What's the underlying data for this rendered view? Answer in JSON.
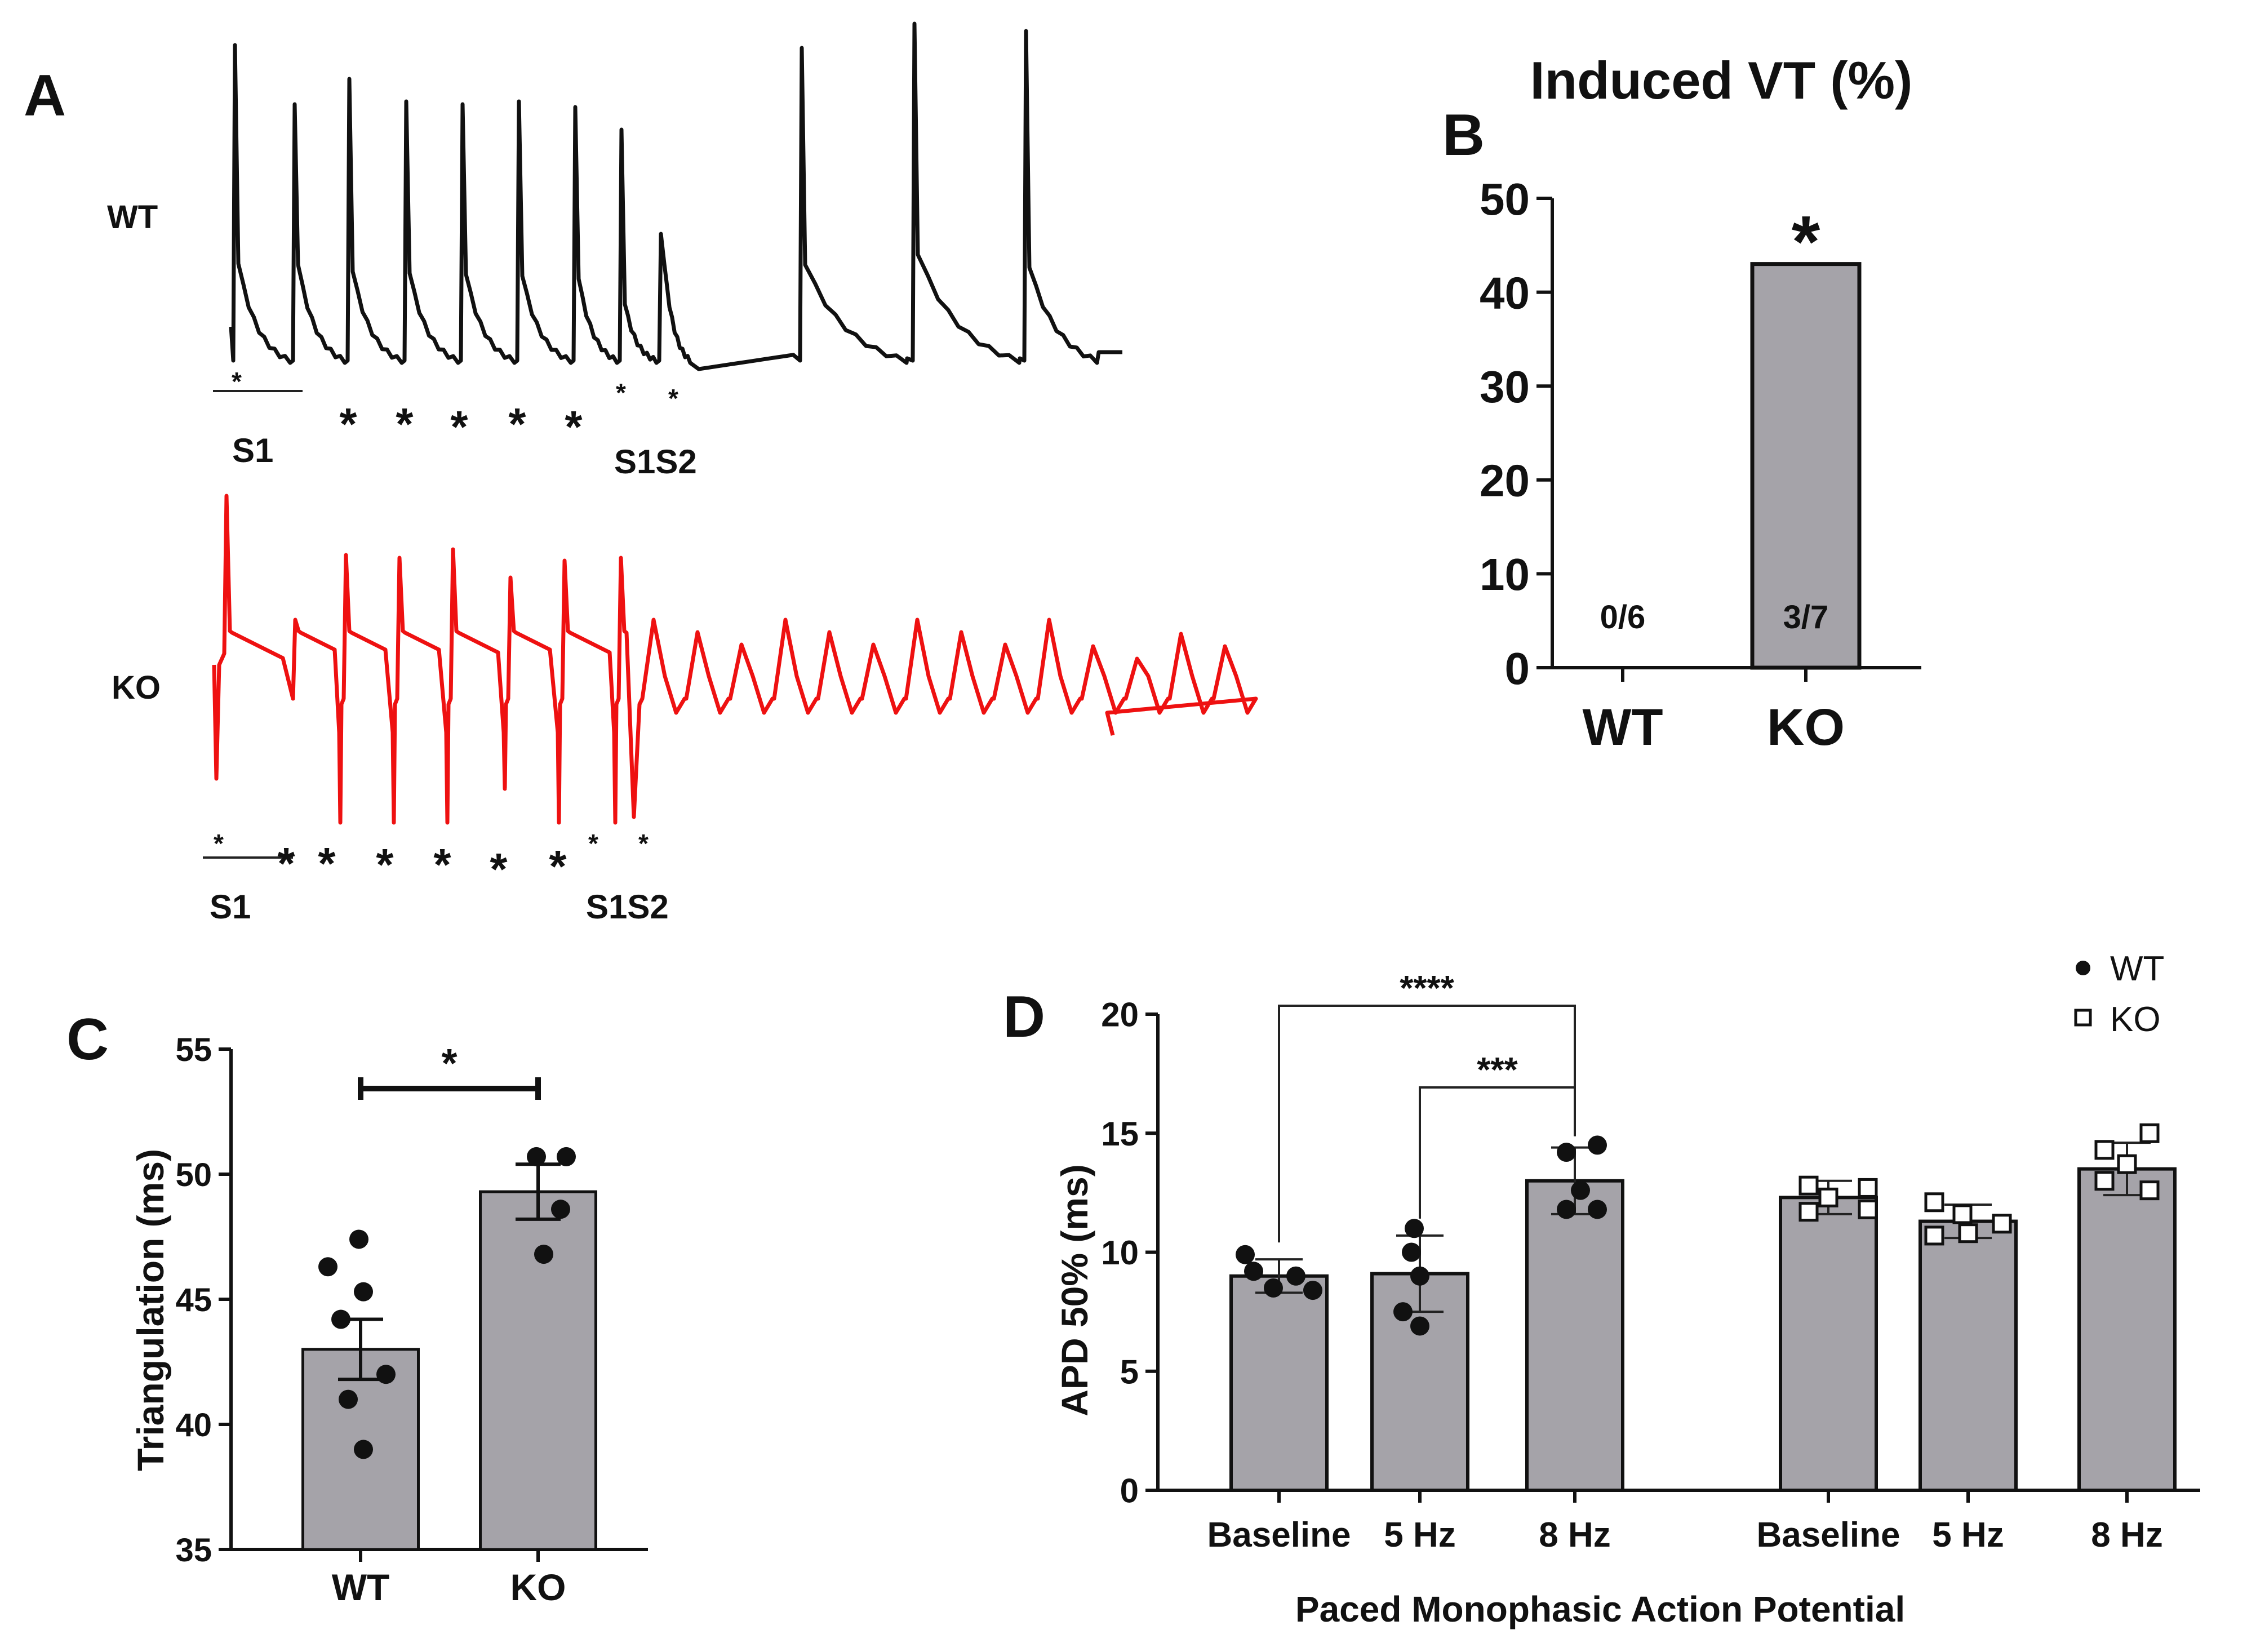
{
  "panels": {
    "A": {
      "letter": "A",
      "wt_label": "WT",
      "ko_label": "KO",
      "wt_s1": "S1",
      "wt_s1s2": "S1S2",
      "ko_s1": "S1",
      "ko_s1s2": "S1S2",
      "wt_color": "#111111",
      "ko_color": "#ee1111"
    },
    "B": {
      "letter": "B"
    },
    "C": {
      "letter": "C"
    },
    "D": {
      "letter": "D"
    }
  },
  "chart_data": [
    {
      "id": "B",
      "type": "bar",
      "title": "Induced VT (%)",
      "categories": [
        "WT",
        "KO"
      ],
      "values": [
        0,
        43
      ],
      "bar_labels": [
        "0/6",
        "3/7"
      ],
      "ylabel": "",
      "ylim": [
        0,
        50
      ],
      "yticks": [
        "0",
        "10",
        "20",
        "30",
        "40",
        "50"
      ],
      "annotation": "*",
      "bar_color": "#a5a3a9"
    },
    {
      "id": "C",
      "type": "bar",
      "title": "",
      "categories": [
        "WT",
        "KO"
      ],
      "values": [
        43.0,
        49.3
      ],
      "errors": [
        1.2,
        1.1
      ],
      "points": [
        [
          47.4,
          46.3,
          45.3,
          44.2,
          42.0,
          41.0,
          39.0
        ],
        [
          50.7,
          50.7,
          48.6,
          46.8
        ]
      ],
      "ylabel": "Triangulation (ms)",
      "ylim": [
        35,
        55
      ],
      "yticks": [
        "35",
        "40",
        "45",
        "50",
        "55"
      ],
      "significance": "*",
      "bar_color": "#a5a3a9"
    },
    {
      "id": "D",
      "type": "bar",
      "title": "",
      "categories": [
        "Baseline",
        "5 Hz",
        "8 Hz",
        "Baseline",
        "5 Hz",
        "8 Hz"
      ],
      "groups": [
        "WT",
        "WT",
        "WT",
        "KO",
        "KO",
        "KO"
      ],
      "values": [
        9.0,
        9.1,
        13.0,
        12.3,
        11.3,
        13.5
      ],
      "errors": [
        0.7,
        1.6,
        1.4,
        0.7,
        0.7,
        1.1
      ],
      "points": [
        [
          9.9,
          9.2,
          9.0,
          8.5,
          8.4
        ],
        [
          11.0,
          10.0,
          9.0,
          7.5,
          6.9
        ],
        [
          14.5,
          14.2,
          12.6,
          11.8,
          11.8
        ],
        [
          12.8,
          12.7,
          12.3,
          11.7,
          11.8
        ],
        [
          12.1,
          11.6,
          11.2,
          10.8,
          10.7
        ],
        [
          15.0,
          14.3,
          13.7,
          13.0,
          12.6
        ]
      ],
      "legend": [
        "WT",
        "KO"
      ],
      "legend_position": "top-right",
      "ylabel": "APD 50% (ms)",
      "xlabel": "Paced Monophasic Action Potential",
      "ylim": [
        0,
        20
      ],
      "yticks": [
        "0",
        "5",
        "10",
        "15",
        "20"
      ],
      "brackets": [
        {
          "from": 0,
          "to": 2,
          "label": "****"
        },
        {
          "from": 1,
          "to": 2,
          "label": "***"
        }
      ],
      "bar_color": "#a5a3a9"
    }
  ]
}
